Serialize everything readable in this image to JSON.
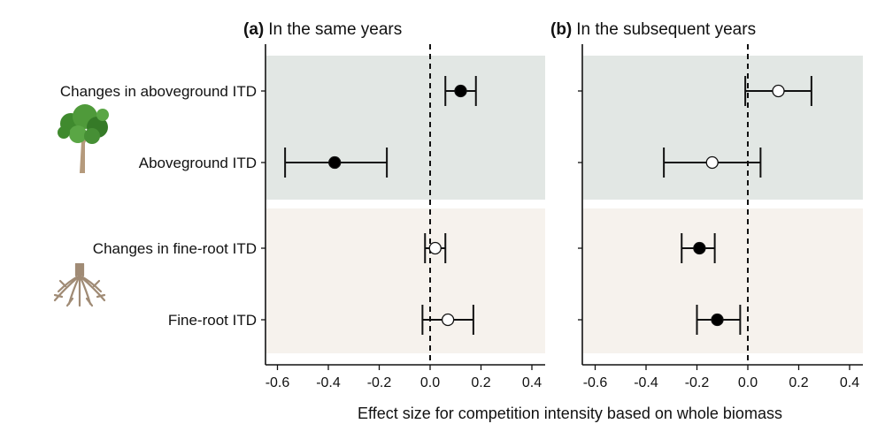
{
  "chart_data": [
    {
      "type": "scatter",
      "subtype": "forest-plot",
      "panel_tag": "(a)",
      "title": "In the same years",
      "xlim": [
        -0.65,
        0.45
      ],
      "xticks": [
        -0.6,
        -0.4,
        -0.2,
        0.0,
        0.2,
        0.4
      ],
      "xtick_labels": [
        "-0.6",
        "-0.4",
        "-0.2",
        "0.0",
        "0.2",
        "0.4"
      ],
      "reference_line": 0.0,
      "categories": [
        "Changes in aboveground ITD",
        "Aboveground ITD",
        "Changes in fine-root ITD",
        "Fine-root ITD"
      ],
      "points": [
        {
          "category": "Changes in aboveground ITD",
          "estimate": 0.12,
          "ci_low": 0.06,
          "ci_high": 0.18,
          "significant": true
        },
        {
          "category": "Aboveground ITD",
          "estimate": -0.375,
          "ci_low": -0.57,
          "ci_high": -0.17,
          "significant": true
        },
        {
          "category": "Changes in fine-root ITD",
          "estimate": 0.02,
          "ci_low": -0.02,
          "ci_high": 0.06,
          "significant": false
        },
        {
          "category": "Fine-root ITD",
          "estimate": 0.07,
          "ci_low": -0.03,
          "ci_high": 0.17,
          "significant": false
        }
      ]
    },
    {
      "type": "scatter",
      "subtype": "forest-plot",
      "panel_tag": "(b)",
      "title": "In the subsequent years",
      "xlim": [
        -0.65,
        0.45
      ],
      "xticks": [
        -0.6,
        -0.4,
        -0.2,
        0.0,
        0.2,
        0.4
      ],
      "xtick_labels": [
        "-0.6",
        "-0.4",
        "-0.2",
        "0.0",
        "0.2",
        "0.4"
      ],
      "reference_line": 0.0,
      "categories": [
        "Changes in aboveground ITD",
        "Aboveground ITD",
        "Changes in fine-root ITD",
        "Fine-root ITD"
      ],
      "points": [
        {
          "category": "Changes in aboveground ITD",
          "estimate": 0.12,
          "ci_low": -0.01,
          "ci_high": 0.25,
          "significant": false
        },
        {
          "category": "Aboveground ITD",
          "estimate": -0.14,
          "ci_low": -0.33,
          "ci_high": 0.05,
          "significant": false
        },
        {
          "category": "Changes in fine-root ITD",
          "estimate": -0.19,
          "ci_low": -0.26,
          "ci_high": -0.13,
          "significant": true
        },
        {
          "category": "Fine-root ITD",
          "estimate": -0.12,
          "ci_low": -0.2,
          "ci_high": -0.03,
          "significant": true
        }
      ]
    }
  ],
  "shared": {
    "xlabel": "Effect size for competition intensity based on whole biomass",
    "ylabels": [
      "Changes in aboveground ITD",
      "Aboveground ITD",
      "Changes in fine-root ITD",
      "Fine-root ITD"
    ],
    "groups": [
      {
        "name": "aboveground",
        "icon": "tree-icon",
        "color": "#e2e7e4"
      },
      {
        "name": "fine-root",
        "icon": "roots-icon",
        "color": "#f6f2ed"
      }
    ],
    "colors": {
      "filled_point": "#000000",
      "open_point": "#ffffff",
      "axis": "#111111"
    }
  }
}
